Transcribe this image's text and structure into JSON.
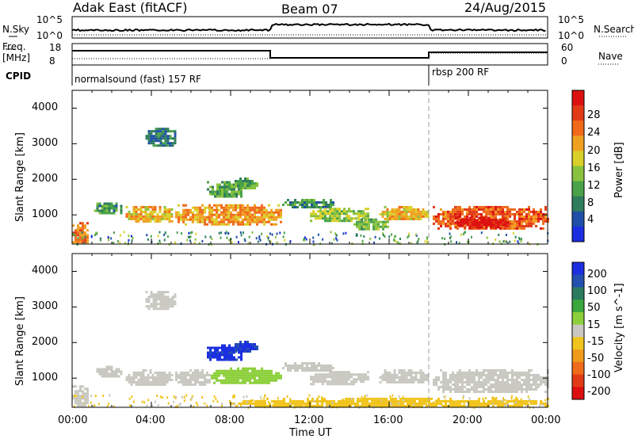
{
  "header": {
    "radar": "Adak East (fitACF)",
    "beam": "Beam 07",
    "date": "24/Aug/2015"
  },
  "panels": {
    "nsky_label": "N.Sky",
    "nsearch_label": "N.Search",
    "freq_label_1": "Freq.",
    "freq_label_2": "[MHz]",
    "nave_label": "Nave",
    "cpid_label": "CPID",
    "nsky_ticks": [
      "10^5",
      "10^0"
    ],
    "nsearch_ticks": [
      "10^5",
      "10^0"
    ],
    "freq_ticks": [
      "18",
      "8"
    ],
    "nave_ticks": [
      "60",
      "0"
    ],
    "cpid_segments": [
      {
        "label": "normalsound (fast) 157 RF",
        "start_h": 0
      },
      {
        "label": "rbsp 200 RF",
        "start_h": 18
      }
    ]
  },
  "colors": {
    "power_scale": [
      "#1c2fe0",
      "#1f4fa8",
      "#2f7d5c",
      "#4aa34a",
      "#89c23e",
      "#d9d02a",
      "#f0a020",
      "#f06a1a",
      "#e23a16",
      "#dd1010"
    ],
    "velocity_scale": [
      "#1c2fe0",
      "#2350b0",
      "#2c7a5e",
      "#3aa73c",
      "#8ccf3a",
      "#c8c8c0",
      "#f0c41c",
      "#f09a1c",
      "#ef6a1a",
      "#e23a16",
      "#dd1010"
    ]
  },
  "chart_data": [
    {
      "type": "heatmap",
      "title": "Power",
      "xlabel": "",
      "ylabel": "Slant Range [km]",
      "x_unit": "UT hour",
      "xlim": [
        0,
        24
      ],
      "ylim": [
        180,
        4500
      ],
      "y_ticks": [
        "1000",
        "2000",
        "3000",
        "4000"
      ],
      "colorbar_label": "Power [dB]",
      "colorbar_ticks": [
        "4",
        "8",
        "12",
        "16",
        "20",
        "24",
        "28"
      ],
      "colorbar_range": [
        0,
        30
      ],
      "regions": [
        {
          "x": [
            0.0,
            0.8
          ],
          "y": [
            200,
            800
          ],
          "value": 22
        },
        {
          "x": [
            1.1,
            2.5
          ],
          "y": [
            1050,
            1350
          ],
          "value": 9
        },
        {
          "x": [
            2.7,
            5.0
          ],
          "y": [
            800,
            1250
          ],
          "value": 18
        },
        {
          "x": [
            3.7,
            5.2
          ],
          "y": [
            2950,
            3450
          ],
          "value": 7
        },
        {
          "x": [
            5.2,
            10.5
          ],
          "y": [
            750,
            1300
          ],
          "value": 20
        },
        {
          "x": [
            6.8,
            8.6
          ],
          "y": [
            1500,
            1950
          ],
          "value": 11
        },
        {
          "x": [
            8.2,
            9.3
          ],
          "y": [
            1750,
            2050
          ],
          "value": 10
        },
        {
          "x": [
            10.6,
            13.2
          ],
          "y": [
            1200,
            1450
          ],
          "value": 9
        },
        {
          "x": [
            12.0,
            15.0
          ],
          "y": [
            850,
            1200
          ],
          "value": 14
        },
        {
          "x": [
            14.2,
            16.0
          ],
          "y": [
            600,
            900
          ],
          "value": 12
        },
        {
          "x": [
            15.5,
            18.0
          ],
          "y": [
            850,
            1250
          ],
          "value": 18
        },
        {
          "x": [
            18.2,
            24.0
          ],
          "y": [
            600,
            1250
          ],
          "value": 24
        },
        {
          "x": [
            19.3,
            22.0
          ],
          "y": [
            650,
            950
          ],
          "value": 29
        }
      ]
    },
    {
      "type": "heatmap",
      "title": "Velocity",
      "xlabel": "Time UT",
      "ylabel": "Slant Range [km]",
      "x_unit": "UT hour",
      "x_ticks": [
        "00:00",
        "04:00",
        "08:00",
        "12:00",
        "16:00",
        "20:00",
        "00:00"
      ],
      "xlim": [
        0,
        24
      ],
      "ylim": [
        180,
        4500
      ],
      "y_ticks": [
        "1000",
        "2000",
        "3000",
        "4000"
      ],
      "colorbar_label": "Velocity [m s^-1]",
      "colorbar_ticks": [
        "200",
        "100",
        "50",
        "15",
        "-15",
        "-50",
        "-100",
        "-200"
      ],
      "regions": [
        {
          "x": [
            0.0,
            0.8
          ],
          "y": [
            200,
            800
          ],
          "value": 0
        },
        {
          "x": [
            1.1,
            2.5
          ],
          "y": [
            1050,
            1350
          ],
          "value": 0
        },
        {
          "x": [
            2.7,
            5.0
          ],
          "y": [
            800,
            1250
          ],
          "value": 0
        },
        {
          "x": [
            3.7,
            5.2
          ],
          "y": [
            2950,
            3450
          ],
          "value": 0
        },
        {
          "x": [
            5.2,
            7.0
          ],
          "y": [
            800,
            1250
          ],
          "value": 0
        },
        {
          "x": [
            7.0,
            10.5
          ],
          "y": [
            850,
            1300
          ],
          "value": 40
        },
        {
          "x": [
            6.8,
            8.6
          ],
          "y": [
            1500,
            1950
          ],
          "value": 250
        },
        {
          "x": [
            8.2,
            9.3
          ],
          "y": [
            1750,
            2050
          ],
          "value": 230
        },
        {
          "x": [
            10.6,
            13.2
          ],
          "y": [
            1200,
            1450
          ],
          "value": 0
        },
        {
          "x": [
            12.0,
            15.0
          ],
          "y": [
            850,
            1200
          ],
          "value": 0
        },
        {
          "x": [
            15.5,
            18.0
          ],
          "y": [
            850,
            1250
          ],
          "value": 0
        },
        {
          "x": [
            18.2,
            24.0
          ],
          "y": [
            600,
            1250
          ],
          "value": 0
        },
        {
          "x": [
            8.0,
            24.0
          ],
          "y": [
            200,
            450
          ],
          "value": -40
        }
      ]
    }
  ]
}
